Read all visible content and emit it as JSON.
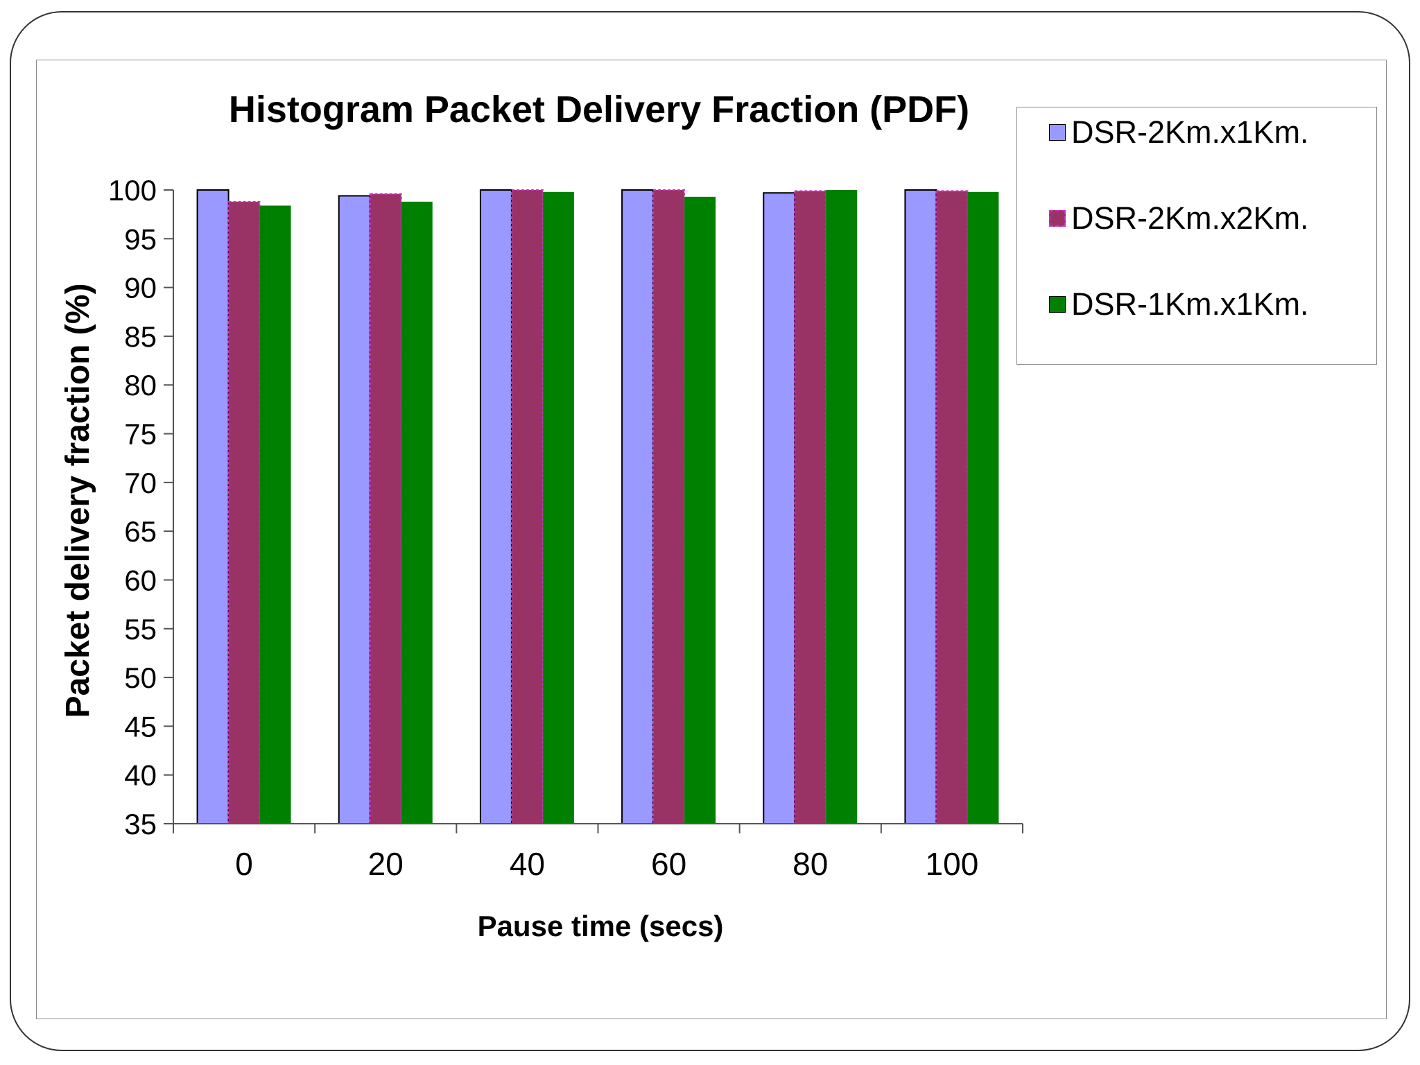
{
  "chart_data": {
    "type": "bar",
    "title": "Histogram Packet Delivery Fraction (PDF)",
    "xlabel": "Pause time (secs)",
    "ylabel": "Packet delivery fraction (%)",
    "categories": [
      "0",
      "20",
      "40",
      "60",
      "80",
      "100"
    ],
    "ylim": [
      35,
      100
    ],
    "yticks": [
      35,
      40,
      45,
      50,
      55,
      60,
      65,
      70,
      75,
      80,
      85,
      90,
      95,
      100
    ],
    "grid": false,
    "legend_position": "right",
    "series": [
      {
        "name": "DSR-2Km.x1Km.",
        "color": "#9999ff",
        "values": [
          100,
          99.4,
          100,
          100,
          99.7,
          100
        ]
      },
      {
        "name": "DSR-2Km.x2Km.",
        "color": "#993366",
        "values": [
          98.8,
          99.6,
          100,
          100,
          99.9,
          99.9
        ]
      },
      {
        "name": "DSR-1Km.x1Km.",
        "color": "#008000",
        "values": [
          98.4,
          98.8,
          99.8,
          99.3,
          100,
          99.8
        ]
      }
    ]
  }
}
